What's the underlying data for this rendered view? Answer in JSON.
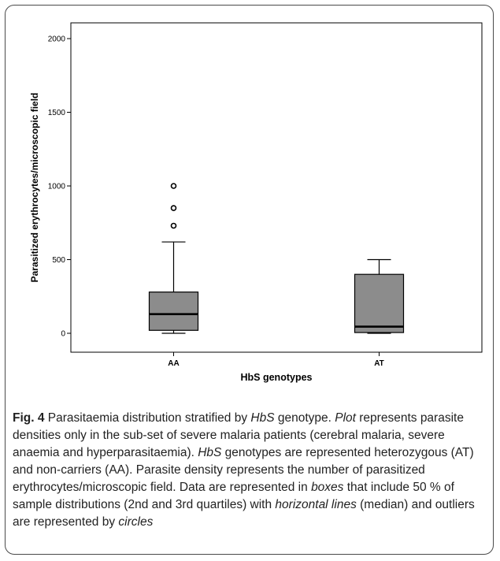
{
  "chart_data": {
    "type": "boxplot",
    "xlabel": "HbS genotypes",
    "ylabel": "Parasitized erythrocytes/microscopic field",
    "ylim": [
      0,
      2000
    ],
    "yticks": [
      "0",
      "500",
      "1000",
      "1500",
      "2000"
    ],
    "categories": [
      "AA",
      "AT"
    ],
    "boxes": [
      {
        "category": "AA",
        "min": 0,
        "q1": 20,
        "median": 130,
        "q3": 280,
        "max": 620,
        "outliers": [
          1000,
          850,
          730
        ]
      },
      {
        "category": "AT",
        "min": 0,
        "q1": 5,
        "median": 45,
        "q3": 400,
        "max": 500,
        "outliers": []
      }
    ],
    "colors": {
      "box_fill": "#8c8c8c",
      "outline": "#000000"
    }
  },
  "caption": {
    "fig_label": "Fig. 4",
    "p1": " Parasitaemia distribution stratified by ",
    "hbs1": "HbS",
    "p2": " genotype. ",
    "plot_word": "Plot",
    "p3": " represents parasite densities only in the sub-set of severe malaria patients (cerebral malaria, severe anaemia and hyperparasitaemia). ",
    "hbs2": "HbS",
    "p4": " genotypes are represented heterozygous (AT) and non-carriers (AA). Parasite density represents the number of parasitized erythrocytes/microscopic field. Data are represented in ",
    "boxes_word": "boxes",
    "p5": " that include 50 % of sample distributions (2nd and 3rd quartiles) with ",
    "hlines_word": "horizontal lines",
    "p6": " (median) and outliers are represented by ",
    "circles_word": "circles"
  }
}
